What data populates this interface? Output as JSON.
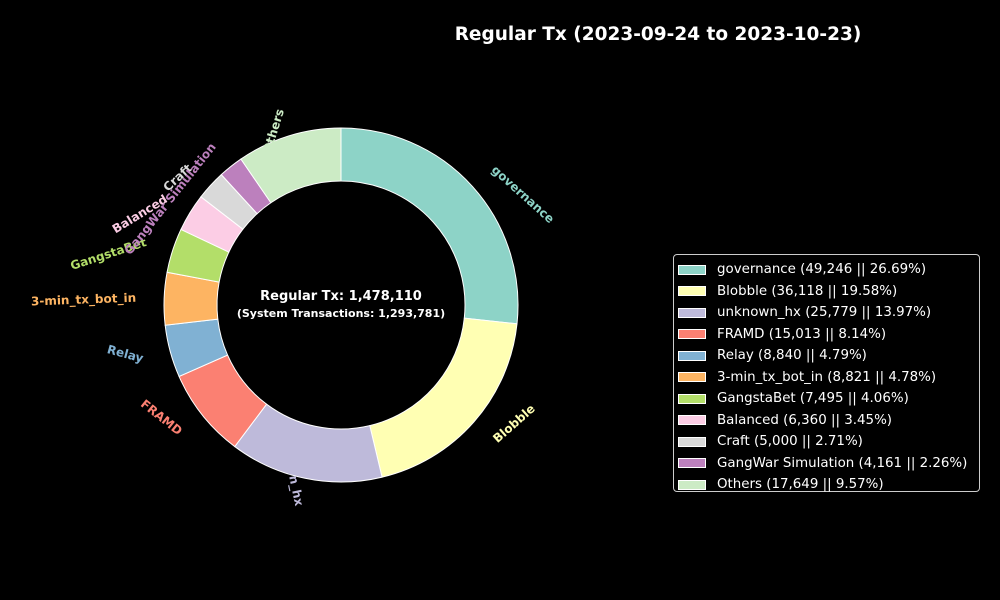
{
  "chart_data": {
    "type": "pie",
    "donut": true,
    "title": "Regular Tx (2023-09-24 to 2023-10-23)",
    "center_text": {
      "line1": "Regular Tx: 1,478,110",
      "line2": "(System Transactions: 1,293,781)"
    },
    "legend_placement": "right",
    "slices": [
      {
        "label": "governance",
        "value": 49246,
        "percent": 26.69,
        "color": "#8dd3c7",
        "legend": "governance (49,246 || 26.69%)"
      },
      {
        "label": "Blobble",
        "value": 36118,
        "percent": 19.58,
        "color": "#ffffb3",
        "legend": "Blobble (36,118 || 19.58%)"
      },
      {
        "label": "unknown_hx",
        "value": 25779,
        "percent": 13.97,
        "color": "#bebada",
        "legend": "unknown_hx (25,779 || 13.97%)"
      },
      {
        "label": "FRAMD",
        "value": 15013,
        "percent": 8.14,
        "color": "#fb8072",
        "legend": "FRAMD (15,013 || 8.14%)"
      },
      {
        "label": "Relay",
        "value": 8840,
        "percent": 4.79,
        "color": "#80b1d3",
        "legend": "Relay (8,840 || 4.79%)"
      },
      {
        "label": "3-min_tx_bot_in",
        "value": 8821,
        "percent": 4.78,
        "color": "#fdb462",
        "legend": "3-min_tx_bot_in (8,821 || 4.78%)"
      },
      {
        "label": "GangstaBet",
        "value": 7495,
        "percent": 4.06,
        "color": "#b3de69",
        "legend": "GangstaBet (7,495 || 4.06%)"
      },
      {
        "label": "Balanced",
        "value": 6360,
        "percent": 3.45,
        "color": "#fccde5",
        "legend": "Balanced (6,360 || 3.45%)"
      },
      {
        "label": "Craft",
        "value": 5000,
        "percent": 2.71,
        "color": "#d9d9d9",
        "legend": "Craft (5,000 || 2.71%)"
      },
      {
        "label": "GangWar Simulation",
        "value": 4161,
        "percent": 2.26,
        "color": "#bc80bd",
        "legend": "GangWar Simulation (4,161 || 2.26%)"
      },
      {
        "label": "Others",
        "value": 17649,
        "percent": 9.57,
        "color": "#ccebc5",
        "legend": "Others (17,649 || 9.57%)"
      }
    ]
  }
}
